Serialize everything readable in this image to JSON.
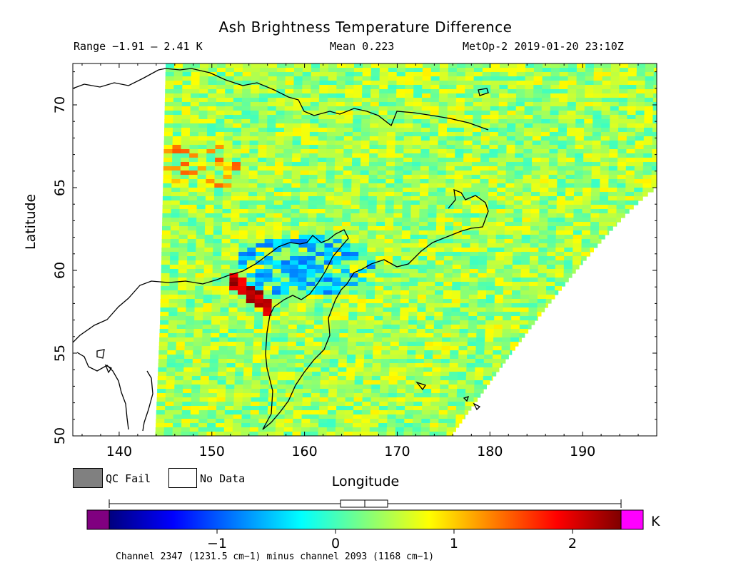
{
  "header": {
    "title": "Ash Brightness Temperature Difference",
    "range": "Range −1.91 – 2.41 K",
    "mean": "Mean 0.223",
    "satellite": "MetOp-2 2019-01-20 23:10Z"
  },
  "axes": {
    "xlabel": "Longitude",
    "ylabel": "Latitude",
    "xticks": [
      "140",
      "150",
      "160",
      "170",
      "180",
      "190"
    ],
    "yticks": [
      "50",
      "55",
      "60",
      "65",
      "70"
    ],
    "xrange": [
      135,
      198
    ],
    "yrange": [
      50,
      72.5
    ]
  },
  "legend": {
    "qc_fail": "QC Fail",
    "no_data": "No Data"
  },
  "colorbar": {
    "unit": "K",
    "ticks": [
      "−1",
      "0",
      "1",
      "2"
    ],
    "range": [
      -1.91,
      2.41
    ],
    "under_color": "#800080",
    "over_color": "#ff00ff",
    "colors": [
      "#00007f",
      "#0000ff",
      "#007fff",
      "#00ffff",
      "#7fff7f",
      "#ffff00",
      "#ff7f00",
      "#ff0000",
      "#7f0000"
    ]
  },
  "footer": {
    "channel_note": "Channel 2347 (1231.5 cm−1) minus channel 2093 (1168 cm−1)"
  },
  "map": {
    "qc_fail_color": "#808080",
    "no_data_color": "#ffffff",
    "dominant_field_color": "#7fff7f",
    "ash_signal_color": "#b00000"
  }
}
